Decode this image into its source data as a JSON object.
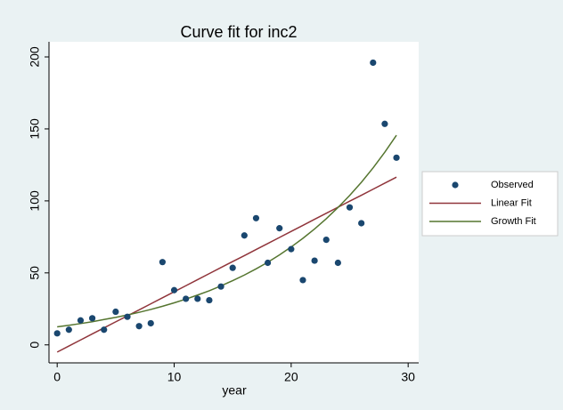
{
  "chart_data": {
    "type": "scatter",
    "title": "Curve fit for inc2",
    "x_label": "year",
    "x": [
      0,
      1,
      2,
      3,
      4,
      5,
      6,
      7,
      8,
      9,
      10,
      11,
      12,
      13,
      14,
      15,
      16,
      17,
      18,
      19,
      20,
      21,
      22,
      23,
      24,
      25,
      26,
      27,
      28,
      29
    ],
    "series": [
      {
        "name": "Observed",
        "color": "#1a476f",
        "mark": "point",
        "values": [
          8,
          10.5,
          17,
          18.5,
          10.5,
          23,
          19.5,
          13,
          15,
          57.5,
          38,
          32,
          32,
          31,
          40.5,
          53.5,
          76,
          88,
          57,
          81,
          66.5,
          45,
          58.5,
          73,
          57,
          95.5,
          84.5,
          196,
          153.5,
          130
        ]
      },
      {
        "name": "Linear Fit",
        "color": "#90353b",
        "mark": "line",
        "values": [
          -5,
          -0.8,
          3.4,
          7.6,
          11.8,
          16,
          20.1,
          24.3,
          28.5,
          32.7,
          36.9,
          41.1,
          45.3,
          49.5,
          53.7,
          57.9,
          62,
          66.2,
          70.4,
          74.6,
          78.8,
          83,
          87.2,
          91.4,
          95.6,
          99.8,
          103.9,
          108.1,
          112.3,
          116.5
        ]
      },
      {
        "name": "Growth Fit",
        "color": "#55752f",
        "mark": "line",
        "values": [
          12.5,
          13.6,
          14.8,
          16.1,
          17.6,
          19.1,
          20.8,
          22.6,
          24.6,
          26.8,
          29.2,
          31.8,
          34.6,
          37.6,
          41,
          44.6,
          48.5,
          52.8,
          57.4,
          62.5,
          68,
          74,
          80.5,
          87.6,
          95.4,
          103.8,
          112.9,
          122.9,
          133.8,
          145.6
        ]
      }
    ],
    "xlim": [
      -0.7,
      30.9
    ],
    "ylim": [
      -12.5,
      210.5
    ],
    "xticks": [
      0,
      10,
      20,
      30
    ],
    "yticks": [
      0,
      50,
      100,
      150,
      200
    ],
    "legend": "right"
  }
}
